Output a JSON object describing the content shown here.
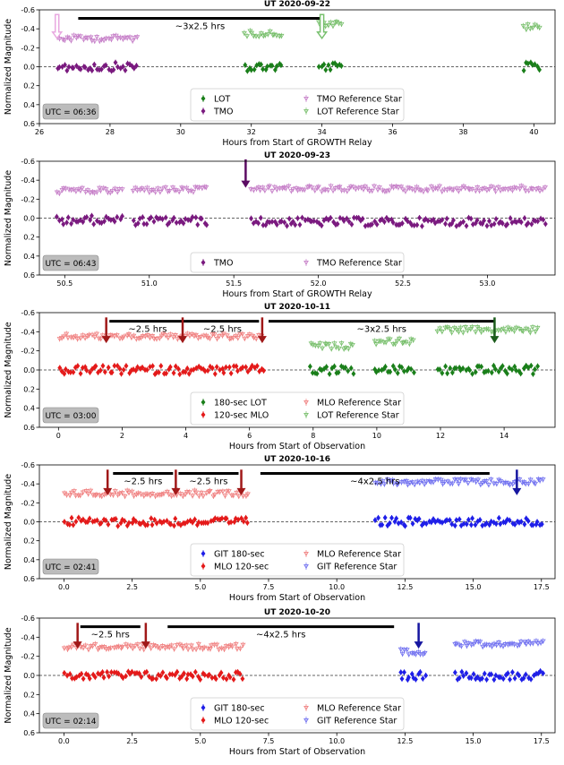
{
  "chart_data": [
    {
      "type": "scatter",
      "title": "UT 2020-09-22",
      "xlabel": "Hours from Start of GROWTH Relay",
      "ylabel": "Normalized Magnitude",
      "xlim": [
        26,
        40.6
      ],
      "ylim": [
        0.6,
        -0.6
      ],
      "xticks": [
        26,
        28,
        30,
        32,
        34,
        36,
        38,
        40
      ],
      "xtick_labels": [
        "26",
        "28",
        "30",
        "32",
        "34",
        "36",
        "38",
        "40"
      ],
      "yticks": [
        -0.6,
        -0.4,
        -0.2,
        0.0,
        0.2,
        0.4,
        0.6
      ],
      "ytick_labels": [
        "-0.6",
        "-0.4",
        "-0.2",
        "0.0",
        "0.2",
        "0.4",
        "0.6"
      ],
      "utc_label": "UTC = 06:36",
      "grid": false,
      "legend_position": "bottom-center",
      "legend_columns": 2,
      "series": [
        {
          "name": "LOT",
          "color": "#1a7f1a",
          "marker": "diamond",
          "segments": [
            [
              31.8,
              32.9,
              0.0
            ],
            [
              33.9,
              34.6,
              0.0
            ],
            [
              39.7,
              40.2,
              0.0
            ]
          ]
        },
        {
          "name": "TMO",
          "color": "#7a1a7f",
          "marker": "diamond",
          "segments": [
            [
              26.5,
              28.8,
              0.0
            ]
          ]
        },
        {
          "name": "TMO Reference Star",
          "color": "#c67fc8",
          "marker": "triangle-down",
          "segments": [
            [
              26.5,
              28.8,
              -0.3
            ]
          ]
        },
        {
          "name": "LOT Reference Star",
          "color": "#78bf6c",
          "marker": "triangle-down",
          "segments": [
            [
              31.8,
              32.9,
              -0.35
            ],
            [
              33.9,
              34.6,
              -0.45
            ],
            [
              39.7,
              40.2,
              -0.42
            ]
          ]
        }
      ],
      "bars": [
        {
          "label": "~3x2.5 hrs",
          "x0": 27.1,
          "x1": 34.0,
          "y": -0.51
        }
      ],
      "arrows": [
        {
          "x": 26.5,
          "y_from": -0.55,
          "y_to": -0.3,
          "color": "#e8a8e0",
          "style": "hollow"
        },
        {
          "x": 34.0,
          "y_from": -0.55,
          "y_to": -0.3,
          "color": "#78c06e",
          "style": "hollow"
        }
      ]
    },
    {
      "type": "scatter",
      "title": "UT 2020-09-23",
      "xlabel": "Hours from Start of GROWTH Relay",
      "ylabel": "Normalized Magnitude",
      "xlim": [
        50.35,
        53.4
      ],
      "ylim": [
        0.6,
        -0.6
      ],
      "xticks": [
        50.5,
        51.0,
        51.5,
        52.0,
        52.5,
        53.0
      ],
      "xtick_labels": [
        "50.5",
        "51.0",
        "51.5",
        "52.0",
        "52.5",
        "53.0"
      ],
      "yticks": [
        -0.6,
        -0.4,
        -0.2,
        0.0,
        0.2,
        0.4,
        0.6
      ],
      "ytick_labels": [
        "-0.6",
        "-0.4",
        "-0.2",
        "0.0",
        "0.2",
        "0.4",
        "0.6"
      ],
      "utc_label": "UTC = 06:43",
      "grid": false,
      "legend_position": "bottom-center",
      "legend_columns": 2,
      "series": [
        {
          "name": "TMO",
          "color": "#7a1a7f",
          "marker": "diamond",
          "segments": [
            [
              50.45,
              50.85,
              0.02
            ],
            [
              50.9,
              51.35,
              0.03
            ],
            [
              51.6,
              53.35,
              0.04
            ]
          ]
        },
        {
          "name": "TMO Reference Star",
          "color": "#c67fc8",
          "marker": "triangle-down",
          "segments": [
            [
              50.45,
              50.85,
              -0.29
            ],
            [
              50.9,
              51.35,
              -0.3
            ],
            [
              51.6,
              53.35,
              -0.31
            ]
          ]
        }
      ],
      "bars": [],
      "arrows": [
        {
          "x": 51.57,
          "y_from": -0.62,
          "y_to": -0.32,
          "color": "#5c0b63",
          "style": "solid"
        }
      ]
    },
    {
      "type": "scatter",
      "title": "UT 2020-10-11",
      "xlabel": "Hours from Start of Observation",
      "ylabel": "Normalized Magnitude",
      "xlim": [
        -0.6,
        15.6
      ],
      "ylim": [
        0.6,
        -0.6
      ],
      "xticks": [
        0,
        2,
        4,
        6,
        8,
        10,
        12,
        14
      ],
      "xtick_labels": [
        "0",
        "2",
        "4",
        "6",
        "8",
        "10",
        "12",
        "14"
      ],
      "yticks": [
        -0.6,
        -0.4,
        -0.2,
        0.0,
        0.2,
        0.4,
        0.6
      ],
      "ytick_labels": [
        "-0.6",
        "-0.4",
        "-0.2",
        "0.0",
        "0.2",
        "0.4",
        "0.6"
      ],
      "utc_label": "UTC = 03:00",
      "grid": false,
      "legend_position": "bottom-center",
      "legend_columns": 2,
      "series": [
        {
          "name": "180-sec LOT",
          "color": "#1a7f1a",
          "marker": "diamond",
          "segments": [
            [
              7.9,
              9.3,
              0.0
            ],
            [
              9.9,
              11.2,
              0.0
            ],
            [
              11.9,
              15.1,
              0.0
            ]
          ]
        },
        {
          "name": "120-sec MLO",
          "color": "#e41a1a",
          "marker": "diamond",
          "segments": [
            [
              0.0,
              6.5,
              0.0
            ]
          ]
        },
        {
          "name": "MLO Reference Star",
          "color": "#f08080",
          "marker": "triangle-down",
          "segments": [
            [
              0.0,
              6.5,
              -0.35
            ]
          ]
        },
        {
          "name": "LOT Reference Star",
          "color": "#78bf6c",
          "marker": "triangle-down",
          "segments": [
            [
              7.9,
              9.3,
              -0.25
            ],
            [
              9.9,
              11.2,
              -0.3
            ],
            [
              11.9,
              15.1,
              -0.42
            ]
          ]
        }
      ],
      "bars": [
        {
          "label": "~2.5 hrs",
          "x0": 1.6,
          "x1": 4.0,
          "y": -0.51
        },
        {
          "label": "~2.5 hrs",
          "x0": 4.0,
          "x1": 6.3,
          "y": -0.51
        },
        {
          "label": "~3x2.5 hrs",
          "x0": 6.6,
          "x1": 13.7,
          "y": -0.51
        }
      ],
      "arrows": [
        {
          "x": 1.5,
          "y_from": -0.55,
          "y_to": -0.28,
          "color": "#a01818",
          "style": "solid"
        },
        {
          "x": 3.9,
          "y_from": -0.55,
          "y_to": -0.28,
          "color": "#a01818",
          "style": "solid"
        },
        {
          "x": 6.4,
          "y_from": -0.55,
          "y_to": -0.28,
          "color": "#a01818",
          "style": "solid"
        },
        {
          "x": 13.7,
          "y_from": -0.55,
          "y_to": -0.28,
          "color": "#1c5c1c",
          "style": "solid"
        }
      ]
    },
    {
      "type": "scatter",
      "title": "UT 2020-10-16",
      "xlabel": "Hours from Start of Observation",
      "ylabel": "Normalized Magnitude",
      "xlim": [
        -0.9,
        18.0
      ],
      "ylim": [
        0.6,
        -0.6
      ],
      "xticks": [
        0.0,
        2.5,
        5.0,
        7.5,
        10.0,
        12.5,
        15.0,
        17.5
      ],
      "xtick_labels": [
        "0.0",
        "2.5",
        "5.0",
        "7.5",
        "10.0",
        "12.5",
        "15.0",
        "17.5"
      ],
      "yticks": [
        -0.6,
        -0.4,
        -0.2,
        0.0,
        0.2,
        0.4,
        0.6
      ],
      "ytick_labels": [
        "-0.6",
        "-0.4",
        "-0.2",
        "0.0",
        "0.2",
        "0.4",
        "0.6"
      ],
      "utc_label": "UTC = 02:41",
      "grid": false,
      "legend_position": "bottom-center",
      "legend_columns": 2,
      "series": [
        {
          "name": "GIT 180-sec",
          "color": "#1f1fe8",
          "marker": "diamond",
          "segments": [
            [
              11.4,
              17.6,
              0.0
            ]
          ]
        },
        {
          "name": "MLO 120-sec",
          "color": "#e41a1a",
          "marker": "diamond",
          "segments": [
            [
              0.0,
              6.8,
              0.0
            ]
          ]
        },
        {
          "name": "MLO Reference Star",
          "color": "#f08080",
          "marker": "triangle-down",
          "segments": [
            [
              0.0,
              6.8,
              -0.3
            ]
          ]
        },
        {
          "name": "GIT Reference Star",
          "color": "#7070f0",
          "marker": "triangle-down",
          "segments": [
            [
              11.4,
              17.6,
              -0.42
            ]
          ]
        }
      ],
      "bars": [
        {
          "label": "~2.5 hrs",
          "x0": 1.8,
          "x1": 4.0,
          "y": -0.51
        },
        {
          "label": "~2.5 hrs",
          "x0": 4.2,
          "x1": 6.4,
          "y": -0.51
        },
        {
          "label": "~4x2.5 hrs",
          "x0": 7.2,
          "x1": 15.6,
          "y": -0.51
        }
      ],
      "arrows": [
        {
          "x": 1.6,
          "y_from": -0.55,
          "y_to": -0.28,
          "color": "#a01818",
          "style": "solid"
        },
        {
          "x": 4.1,
          "y_from": -0.55,
          "y_to": -0.28,
          "color": "#a01818",
          "style": "solid"
        },
        {
          "x": 6.5,
          "y_from": -0.55,
          "y_to": -0.28,
          "color": "#a01818",
          "style": "solid"
        },
        {
          "x": 16.6,
          "y_from": -0.55,
          "y_to": -0.28,
          "color": "#1616a0",
          "style": "solid"
        }
      ]
    },
    {
      "type": "scatter",
      "title": "UT 2020-10-20",
      "xlabel": "Hours from Start of Observation",
      "ylabel": "Normalized Magnitude",
      "xlim": [
        -0.9,
        18.0
      ],
      "ylim": [
        0.6,
        -0.6
      ],
      "xticks": [
        0.0,
        2.5,
        5.0,
        7.5,
        10.0,
        12.5,
        15.0,
        17.5
      ],
      "xtick_labels": [
        "0.0",
        "2.5",
        "5.0",
        "7.5",
        "10.0",
        "12.5",
        "15.0",
        "17.5"
      ],
      "yticks": [
        -0.6,
        -0.4,
        -0.2,
        0.0,
        0.2,
        0.4,
        0.6
      ],
      "ytick_labels": [
        "-0.6",
        "-0.4",
        "-0.2",
        "0.0",
        "0.2",
        "0.4",
        "0.6"
      ],
      "utc_label": "UTC = 02:14",
      "grid": false,
      "legend_position": "bottom-center",
      "legend_columns": 2,
      "series": [
        {
          "name": "GIT 180-sec",
          "color": "#1f1fe8",
          "marker": "diamond",
          "segments": [
            [
              12.3,
              13.3,
              0.0
            ],
            [
              14.3,
              17.6,
              0.0
            ]
          ]
        },
        {
          "name": "MLO 120-sec",
          "color": "#e41a1a",
          "marker": "diamond",
          "segments": [
            [
              0.0,
              6.6,
              0.0
            ]
          ]
        },
        {
          "name": "MLO Reference Star",
          "color": "#f08080",
          "marker": "triangle-down",
          "segments": [
            [
              0.0,
              6.6,
              -0.3
            ]
          ]
        },
        {
          "name": "GIT Reference Star",
          "color": "#7070f0",
          "marker": "triangle-down",
          "segments": [
            [
              12.3,
              13.3,
              -0.25
            ],
            [
              14.3,
              17.6,
              -0.33
            ]
          ]
        }
      ],
      "bars": [
        {
          "label": "~2.5 hrs",
          "x0": 0.6,
          "x1": 2.8,
          "y": -0.51
        },
        {
          "label": "~4x2.5 hrs",
          "x0": 3.8,
          "x1": 12.1,
          "y": -0.51
        }
      ],
      "arrows": [
        {
          "x": 0.5,
          "y_from": -0.55,
          "y_to": -0.28,
          "color": "#a01818",
          "style": "solid"
        },
        {
          "x": 3.0,
          "y_from": -0.55,
          "y_to": -0.28,
          "color": "#a01818",
          "style": "solid"
        },
        {
          "x": 13.0,
          "y_from": -0.55,
          "y_to": -0.28,
          "color": "#1616a0",
          "style": "solid"
        }
      ]
    }
  ]
}
